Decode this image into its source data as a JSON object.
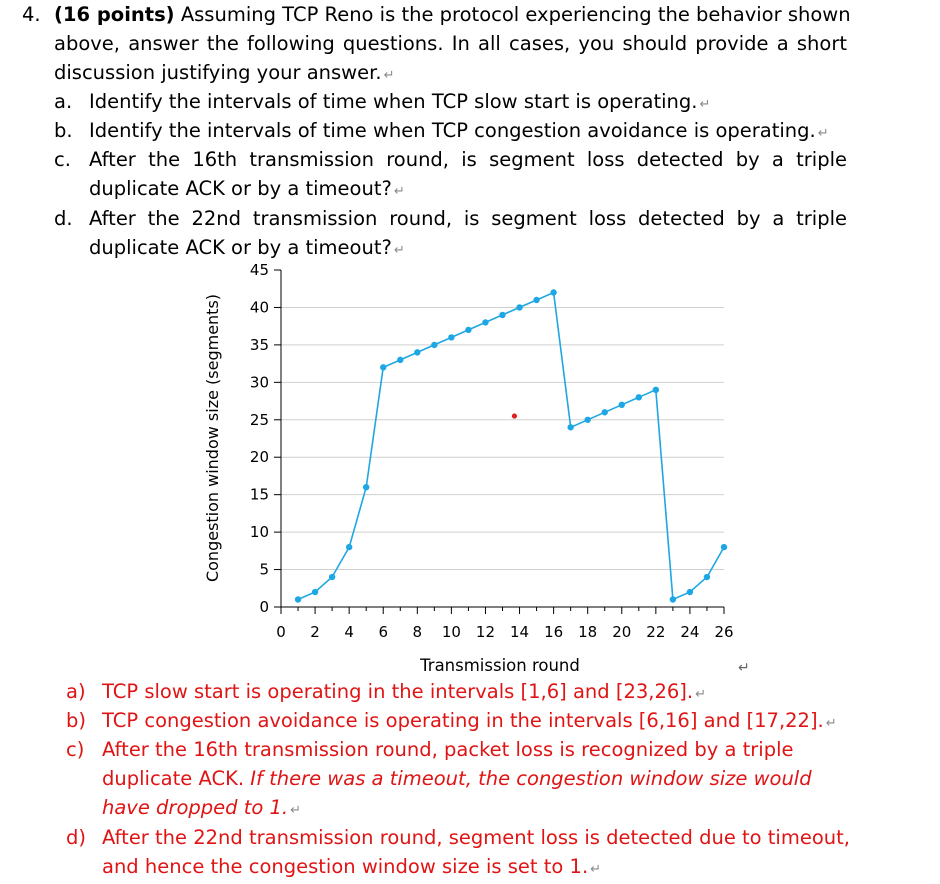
{
  "question": {
    "number": "4.",
    "points": "(16 points)",
    "intro_l1_rest": "Assuming TCP Reno is the protocol experiencing the behavior shown",
    "intro_l2": "above, answer the following questions. In all cases, you should provide a short",
    "intro_l3": "discussion justifying your answer.",
    "parts": [
      {
        "letter": "a.",
        "lines": [
          "Identify the intervals of time when TCP slow start is operating."
        ]
      },
      {
        "letter": "b.",
        "lines": [
          "Identify the intervals of time when TCP congestion avoidance is operating."
        ]
      },
      {
        "letter": "c.",
        "lines": [
          "After the 16th transmission round, is segment loss detected by a triple",
          "duplicate ACK or by a timeout?"
        ]
      },
      {
        "letter": "d.",
        "lines": [
          "After the 22nd transmission round, is segment loss detected by a triple",
          "duplicate ACK or by a timeout?"
        ]
      }
    ],
    "return_mark": "↵"
  },
  "chart_data": {
    "type": "line",
    "xlabel": "Transmission round",
    "ylabel": "Congestion window size (segments)",
    "xlim": [
      0,
      26
    ],
    "ylim": [
      0,
      45
    ],
    "x_ticks": [
      0,
      2,
      4,
      6,
      8,
      10,
      12,
      14,
      16,
      18,
      20,
      22,
      24,
      26
    ],
    "y_ticks": [
      0,
      5,
      10,
      15,
      20,
      25,
      30,
      35,
      40,
      45
    ],
    "grid": "horizontal",
    "color": "#1ea7e4",
    "series": [
      {
        "x": [
          1,
          2,
          3,
          4,
          5,
          6,
          7,
          8,
          9,
          10,
          11,
          12,
          13,
          14,
          15,
          16,
          17,
          18,
          19,
          20,
          21,
          22,
          23,
          24,
          25,
          26
        ],
        "y": [
          1,
          2,
          4,
          8,
          16,
          32,
          33,
          34,
          35,
          36,
          37,
          38,
          39,
          40,
          41,
          42,
          24,
          25,
          26,
          27,
          28,
          29,
          1,
          2,
          4,
          8
        ]
      }
    ],
    "stray_marker": {
      "x": 13.7,
      "y": 25.5,
      "color": "#e02020"
    }
  },
  "answers": [
    {
      "letter": "a)",
      "lines": [
        "TCP slow start is operating in the intervals [1,6] and [23,26]."
      ]
    },
    {
      "letter": "b)",
      "lines": [
        "TCP congestion avoidance is operating in the intervals [6,16] and [17,22]."
      ]
    },
    {
      "letter": "c)",
      "lines": [
        "After the 16th transmission round, packet loss is recognized by a triple"
      ],
      "line2_normal": "duplicate ACK. ",
      "line2_italic": "If there was a timeout, the congestion window size would",
      "line3_italic": "have dropped to 1."
    },
    {
      "letter": "d)",
      "lines": [
        "After the 22nd transmission round, segment loss is detected due to timeout,",
        "and hence the congestion window size is set to 1."
      ]
    }
  ]
}
